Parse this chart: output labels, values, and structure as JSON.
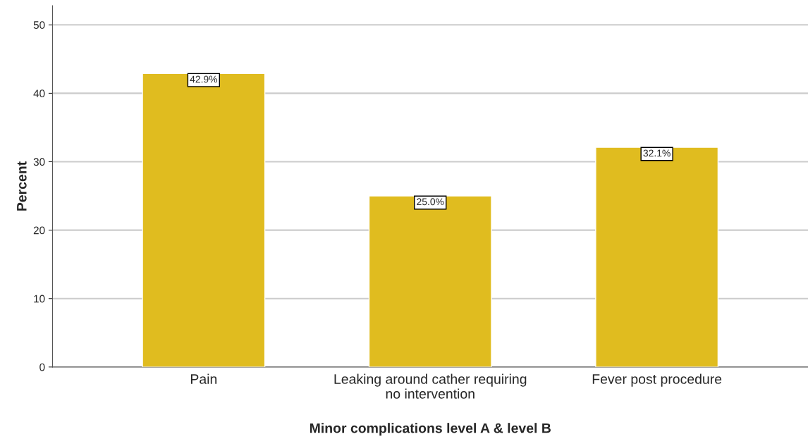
{
  "chart_data": {
    "type": "bar",
    "xlabel": "Minor complications level A & level B",
    "ylabel": "Percent",
    "categories": [
      "Pain",
      "Leaking around cather requiring\nno intervention",
      "Fever post procedure"
    ],
    "values": [
      42.9,
      25.0,
      32.1
    ],
    "value_labels": [
      "42.9%",
      "25.0%",
      "32.1%"
    ],
    "color": "#e0bc1f",
    "ylim": [
      0,
      52.8
    ],
    "yticks": [
      0,
      10,
      20,
      30,
      40,
      50
    ],
    "grid": "y",
    "legend": false
  }
}
